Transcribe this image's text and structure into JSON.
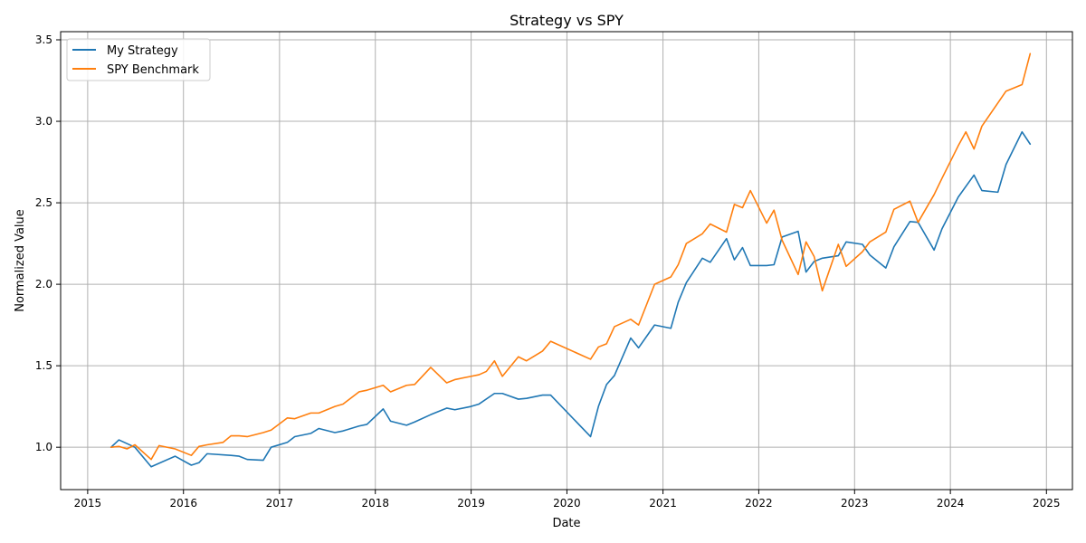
{
  "chart_data": {
    "type": "line",
    "title": "Strategy vs SPY",
    "xlabel": "Date",
    "ylabel": "Normalized Value",
    "xlim": [
      "2014-09-20",
      "2025-04-10"
    ],
    "ylim": [
      0.74,
      3.55
    ],
    "x_ticks": [
      "2015",
      "2016",
      "2017",
      "2018",
      "2019",
      "2020",
      "2021",
      "2022",
      "2023",
      "2024",
      "2025"
    ],
    "y_ticks": [
      "1.0",
      "1.5",
      "2.0",
      "2.5",
      "3.0",
      "3.5"
    ],
    "grid": true,
    "legend_position": "upper-left",
    "series": [
      {
        "name": "My Strategy",
        "color": "#1f77b4",
        "points": [
          [
            "2015-03-31",
            1.0
          ],
          [
            "2015-04-30",
            1.045
          ],
          [
            "2015-06-30",
            1.0
          ],
          [
            "2015-08-31",
            0.88
          ],
          [
            "2015-11-30",
            0.945
          ],
          [
            "2016-01-31",
            0.89
          ],
          [
            "2016-02-29",
            0.905
          ],
          [
            "2016-03-31",
            0.96
          ],
          [
            "2016-06-30",
            0.95
          ],
          [
            "2016-07-31",
            0.945
          ],
          [
            "2016-08-31",
            0.925
          ],
          [
            "2016-10-31",
            0.92
          ],
          [
            "2016-11-30",
            1.0
          ],
          [
            "2017-01-31",
            1.03
          ],
          [
            "2017-02-28",
            1.065
          ],
          [
            "2017-04-30",
            1.085
          ],
          [
            "2017-05-31",
            1.115
          ],
          [
            "2017-07-31",
            1.09
          ],
          [
            "2017-08-31",
            1.1
          ],
          [
            "2017-10-31",
            1.13
          ],
          [
            "2017-11-30",
            1.14
          ],
          [
            "2018-01-31",
            1.235
          ],
          [
            "2018-02-28",
            1.16
          ],
          [
            "2018-04-30",
            1.135
          ],
          [
            "2018-05-31",
            1.155
          ],
          [
            "2018-07-31",
            1.2
          ],
          [
            "2018-09-30",
            1.24
          ],
          [
            "2018-10-31",
            1.23
          ],
          [
            "2018-12-31",
            1.25
          ],
          [
            "2019-01-31",
            1.265
          ],
          [
            "2019-03-31",
            1.33
          ],
          [
            "2019-04-30",
            1.33
          ],
          [
            "2019-06-30",
            1.295
          ],
          [
            "2019-07-31",
            1.3
          ],
          [
            "2019-09-30",
            1.32
          ],
          [
            "2019-10-31",
            1.32
          ],
          [
            "2020-03-31",
            1.065
          ],
          [
            "2020-04-30",
            1.25
          ],
          [
            "2020-05-31",
            1.385
          ],
          [
            "2020-06-30",
            1.44
          ],
          [
            "2020-08-31",
            1.67
          ],
          [
            "2020-09-30",
            1.61
          ],
          [
            "2020-11-30",
            1.75
          ],
          [
            "2021-01-31",
            1.73
          ],
          [
            "2021-02-28",
            1.89
          ],
          [
            "2021-03-31",
            2.01
          ],
          [
            "2021-05-31",
            2.16
          ],
          [
            "2021-06-30",
            2.135
          ],
          [
            "2021-08-31",
            2.28
          ],
          [
            "2021-09-30",
            2.15
          ],
          [
            "2021-10-31",
            2.225
          ],
          [
            "2021-11-30",
            2.115
          ],
          [
            "2022-01-31",
            2.115
          ],
          [
            "2022-02-28",
            2.12
          ],
          [
            "2022-03-31",
            2.29
          ],
          [
            "2022-05-31",
            2.325
          ],
          [
            "2022-06-30",
            2.075
          ],
          [
            "2022-07-31",
            2.14
          ],
          [
            "2022-08-31",
            2.16
          ],
          [
            "2022-10-31",
            2.175
          ],
          [
            "2022-11-30",
            2.26
          ],
          [
            "2023-01-31",
            2.245
          ],
          [
            "2023-02-28",
            2.18
          ],
          [
            "2023-04-30",
            2.1
          ],
          [
            "2023-05-31",
            2.23
          ],
          [
            "2023-07-31",
            2.385
          ],
          [
            "2023-08-31",
            2.38
          ],
          [
            "2023-10-31",
            2.21
          ],
          [
            "2023-11-30",
            2.34
          ],
          [
            "2024-01-31",
            2.535
          ],
          [
            "2024-03-31",
            2.67
          ],
          [
            "2024-04-30",
            2.575
          ],
          [
            "2024-06-30",
            2.565
          ],
          [
            "2024-07-31",
            2.735
          ],
          [
            "2024-09-30",
            2.935
          ],
          [
            "2024-10-31",
            2.86
          ]
        ]
      },
      {
        "name": "SPY Benchmark",
        "color": "#ff7f0e",
        "points": [
          [
            "2015-03-31",
            1.0
          ],
          [
            "2015-04-30",
            1.005
          ],
          [
            "2015-05-31",
            0.99
          ],
          [
            "2015-06-30",
            1.015
          ],
          [
            "2015-08-31",
            0.925
          ],
          [
            "2015-09-30",
            1.01
          ],
          [
            "2015-11-30",
            0.99
          ],
          [
            "2016-01-31",
            0.95
          ],
          [
            "2016-02-29",
            1.005
          ],
          [
            "2016-03-31",
            1.015
          ],
          [
            "2016-05-31",
            1.03
          ],
          [
            "2016-06-30",
            1.07
          ],
          [
            "2016-07-31",
            1.07
          ],
          [
            "2016-08-31",
            1.065
          ],
          [
            "2016-10-31",
            1.09
          ],
          [
            "2016-11-30",
            1.105
          ],
          [
            "2017-01-31",
            1.18
          ],
          [
            "2017-02-28",
            1.175
          ],
          [
            "2017-04-30",
            1.21
          ],
          [
            "2017-05-31",
            1.21
          ],
          [
            "2017-07-31",
            1.25
          ],
          [
            "2017-08-31",
            1.265
          ],
          [
            "2017-10-31",
            1.34
          ],
          [
            "2017-11-30",
            1.35
          ],
          [
            "2018-01-31",
            1.38
          ],
          [
            "2018-02-28",
            1.34
          ],
          [
            "2018-04-30",
            1.38
          ],
          [
            "2018-05-31",
            1.385
          ],
          [
            "2018-07-31",
            1.49
          ],
          [
            "2018-09-30",
            1.395
          ],
          [
            "2018-10-31",
            1.415
          ],
          [
            "2018-12-31",
            1.435
          ],
          [
            "2019-01-31",
            1.445
          ],
          [
            "2019-02-28",
            1.465
          ],
          [
            "2019-03-31",
            1.53
          ],
          [
            "2019-04-30",
            1.435
          ],
          [
            "2019-06-30",
            1.555
          ],
          [
            "2019-07-31",
            1.53
          ],
          [
            "2019-09-30",
            1.59
          ],
          [
            "2019-10-31",
            1.65
          ],
          [
            "2020-03-31",
            1.54
          ],
          [
            "2020-04-30",
            1.615
          ],
          [
            "2020-05-31",
            1.635
          ],
          [
            "2020-06-30",
            1.74
          ],
          [
            "2020-08-31",
            1.785
          ],
          [
            "2020-09-30",
            1.75
          ],
          [
            "2020-11-30",
            2.0
          ],
          [
            "2021-01-31",
            2.045
          ],
          [
            "2021-02-28",
            2.12
          ],
          [
            "2021-03-31",
            2.25
          ],
          [
            "2021-05-31",
            2.31
          ],
          [
            "2021-06-30",
            2.37
          ],
          [
            "2021-08-31",
            2.32
          ],
          [
            "2021-09-30",
            2.49
          ],
          [
            "2021-10-31",
            2.47
          ],
          [
            "2021-11-30",
            2.575
          ],
          [
            "2022-01-31",
            2.375
          ],
          [
            "2022-02-28",
            2.455
          ],
          [
            "2022-03-31",
            2.27
          ],
          [
            "2022-05-31",
            2.06
          ],
          [
            "2022-06-30",
            2.26
          ],
          [
            "2022-07-31",
            2.17
          ],
          [
            "2022-08-31",
            1.96
          ],
          [
            "2022-10-31",
            2.245
          ],
          [
            "2022-11-30",
            2.11
          ],
          [
            "2023-01-31",
            2.2
          ],
          [
            "2023-02-28",
            2.26
          ],
          [
            "2023-04-30",
            2.32
          ],
          [
            "2023-05-31",
            2.46
          ],
          [
            "2023-07-31",
            2.51
          ],
          [
            "2023-08-31",
            2.38
          ],
          [
            "2023-10-31",
            2.55
          ],
          [
            "2023-11-30",
            2.65
          ],
          [
            "2024-01-31",
            2.85
          ],
          [
            "2024-02-29",
            2.935
          ],
          [
            "2024-03-31",
            2.83
          ],
          [
            "2024-04-30",
            2.97
          ],
          [
            "2024-07-31",
            3.185
          ],
          [
            "2024-09-30",
            3.225
          ],
          [
            "2024-10-31",
            3.415
          ]
        ]
      }
    ]
  }
}
